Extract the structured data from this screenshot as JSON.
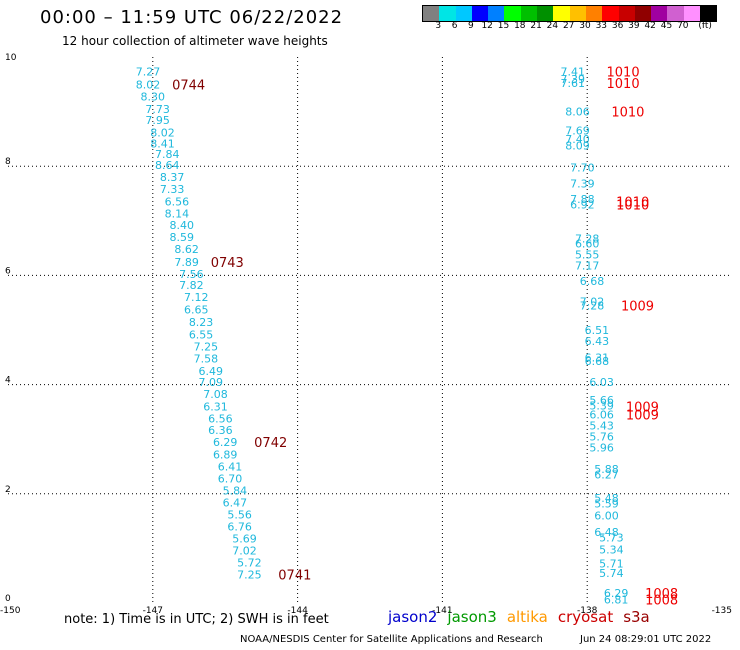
{
  "header": {
    "title": "00:00 – 11:59 UTC 06/22/2022",
    "subtitle": "12 hour collection of altimeter wave heights"
  },
  "colorbar": {
    "colors": [
      "#808080",
      "#00e5e5",
      "#00c8ff",
      "#0000ff",
      "#0080ff",
      "#00ff00",
      "#00c000",
      "#009000",
      "#ffff00",
      "#ffc000",
      "#ff8000",
      "#ff0000",
      "#c80000",
      "#900000",
      "#a000a0",
      "#d060d0",
      "#ff90ff",
      "#000000"
    ],
    "labels": [
      "3",
      "6",
      "9",
      "12",
      "15",
      "18",
      "21",
      "24",
      "27",
      "30",
      "33",
      "36",
      "39",
      "42",
      "45",
      "70",
      "(ft)"
    ]
  },
  "chart_data": {
    "type": "scatter",
    "xlim": [
      -150,
      -135
    ],
    "ylim": [
      0,
      10
    ],
    "x_ticks": [
      "-150",
      "-147",
      "-144",
      "-141",
      "-138",
      "-135"
    ],
    "y_ticks": [
      "0",
      "2",
      "4",
      "6",
      "8",
      "10"
    ],
    "grid": true,
    "track_west": [
      {
        "x": -147.1,
        "y": 9.73,
        "v": "7.27"
      },
      {
        "x": -147.1,
        "y": 9.5,
        "v": "8.02"
      },
      {
        "x": -147.0,
        "y": 9.28,
        "v": "8.30"
      },
      {
        "x": -146.9,
        "y": 9.05,
        "v": "7.73"
      },
      {
        "x": -146.9,
        "y": 8.85,
        "v": "7.95"
      },
      {
        "x": -146.8,
        "y": 8.62,
        "v": "8.02"
      },
      {
        "x": -146.8,
        "y": 8.42,
        "v": "8.41"
      },
      {
        "x": -146.7,
        "y": 8.22,
        "v": "7.84"
      },
      {
        "x": -146.7,
        "y": 8.02,
        "v": "8.64"
      },
      {
        "x": -146.6,
        "y": 7.8,
        "v": "8.37"
      },
      {
        "x": -146.6,
        "y": 7.58,
        "v": "7.33"
      },
      {
        "x": -146.5,
        "y": 7.35,
        "v": "6.56"
      },
      {
        "x": -146.5,
        "y": 7.13,
        "v": "8.14"
      },
      {
        "x": -146.4,
        "y": 6.92,
        "v": "8.40"
      },
      {
        "x": -146.4,
        "y": 6.7,
        "v": "8.59"
      },
      {
        "x": -146.3,
        "y": 6.48,
        "v": "8.62"
      },
      {
        "x": -146.3,
        "y": 6.25,
        "v": "7.89"
      },
      {
        "x": -146.2,
        "y": 6.03,
        "v": "7.56"
      },
      {
        "x": -146.2,
        "y": 5.82,
        "v": "7.82"
      },
      {
        "x": -146.1,
        "y": 5.6,
        "v": "7.12"
      },
      {
        "x": -146.1,
        "y": 5.38,
        "v": "6.65"
      },
      {
        "x": -146.0,
        "y": 5.15,
        "v": "8.23"
      },
      {
        "x": -146.0,
        "y": 4.92,
        "v": "6.55"
      },
      {
        "x": -145.9,
        "y": 4.7,
        "v": "7.25"
      },
      {
        "x": -145.9,
        "y": 4.48,
        "v": "7.58"
      },
      {
        "x": -145.8,
        "y": 4.25,
        "v": "6.49"
      },
      {
        "x": -145.8,
        "y": 4.05,
        "v": "7.09"
      },
      {
        "x": -145.7,
        "y": 3.83,
        "v": "7.08"
      },
      {
        "x": -145.7,
        "y": 3.6,
        "v": "6.31"
      },
      {
        "x": -145.6,
        "y": 3.38,
        "v": "6.56"
      },
      {
        "x": -145.6,
        "y": 3.17,
        "v": "6.36"
      },
      {
        "x": -145.5,
        "y": 2.95,
        "v": "6.29"
      },
      {
        "x": -145.5,
        "y": 2.72,
        "v": "6.89"
      },
      {
        "x": -145.4,
        "y": 2.5,
        "v": "6.41"
      },
      {
        "x": -145.4,
        "y": 2.28,
        "v": "6.70"
      },
      {
        "x": -145.3,
        "y": 2.06,
        "v": "5.84"
      },
      {
        "x": -145.3,
        "y": 1.84,
        "v": "6.47"
      },
      {
        "x": -145.2,
        "y": 1.62,
        "v": "5.56"
      },
      {
        "x": -145.2,
        "y": 1.4,
        "v": "6.76"
      },
      {
        "x": -145.1,
        "y": 1.18,
        "v": "5.69"
      },
      {
        "x": -145.1,
        "y": 0.96,
        "v": "7.02"
      },
      {
        "x": -145.0,
        "y": 0.74,
        "v": "5.72"
      },
      {
        "x": -145.0,
        "y": 0.52,
        "v": "7.25"
      }
    ],
    "track_west_labels": [
      {
        "x": -146.6,
        "y": 9.5,
        "v": "0744"
      },
      {
        "x": -145.8,
        "y": 6.25,
        "v": "0743"
      },
      {
        "x": -144.9,
        "y": 2.95,
        "v": "0742"
      },
      {
        "x": -144.4,
        "y": 0.52,
        "v": "0741"
      }
    ],
    "track_east": [
      {
        "x": -138.3,
        "y": 9.73,
        "v": "7.41"
      },
      {
        "x": -138.3,
        "y": 9.6,
        "v": "7.39"
      },
      {
        "x": -138.3,
        "y": 9.52,
        "v": "7.61"
      },
      {
        "x": -138.2,
        "y": 9.0,
        "v": "8.06"
      },
      {
        "x": -138.2,
        "y": 8.65,
        "v": "7.69"
      },
      {
        "x": -138.2,
        "y": 8.5,
        "v": "7.40"
      },
      {
        "x": -138.2,
        "y": 8.38,
        "v": "8.09"
      },
      {
        "x": -138.1,
        "y": 7.98,
        "v": "7.70"
      },
      {
        "x": -138.1,
        "y": 7.68,
        "v": "7.39"
      },
      {
        "x": -138.1,
        "y": 7.4,
        "v": "7.88"
      },
      {
        "x": -138.1,
        "y": 7.3,
        "v": "6.92"
      },
      {
        "x": -138.0,
        "y": 6.68,
        "v": "7.28"
      },
      {
        "x": -138.0,
        "y": 6.58,
        "v": "6.60"
      },
      {
        "x": -138.0,
        "y": 6.38,
        "v": "5.55"
      },
      {
        "x": -138.0,
        "y": 6.18,
        "v": "7.17"
      },
      {
        "x": -137.9,
        "y": 5.9,
        "v": "6.68"
      },
      {
        "x": -137.9,
        "y": 5.52,
        "v": "7.02"
      },
      {
        "x": -137.9,
        "y": 5.45,
        "v": "7.28"
      },
      {
        "x": -137.8,
        "y": 5.0,
        "v": "6.51"
      },
      {
        "x": -137.8,
        "y": 4.8,
        "v": "6.43"
      },
      {
        "x": -137.8,
        "y": 4.5,
        "v": "6.31"
      },
      {
        "x": -137.8,
        "y": 4.43,
        "v": "6.68"
      },
      {
        "x": -137.7,
        "y": 4.05,
        "v": "6.03"
      },
      {
        "x": -137.7,
        "y": 3.72,
        "v": "5.66"
      },
      {
        "x": -137.7,
        "y": 3.62,
        "v": "5.39"
      },
      {
        "x": -137.7,
        "y": 3.45,
        "v": "6.06"
      },
      {
        "x": -137.7,
        "y": 3.25,
        "v": "5.43"
      },
      {
        "x": -137.7,
        "y": 3.05,
        "v": "5.76"
      },
      {
        "x": -137.7,
        "y": 2.85,
        "v": "5.96"
      },
      {
        "x": -137.6,
        "y": 2.45,
        "v": "5.88"
      },
      {
        "x": -137.6,
        "y": 2.35,
        "v": "6.27"
      },
      {
        "x": -137.6,
        "y": 1.92,
        "v": "5.48"
      },
      {
        "x": -137.6,
        "y": 1.82,
        "v": "5.59"
      },
      {
        "x": -137.6,
        "y": 1.6,
        "v": "6.00"
      },
      {
        "x": -137.6,
        "y": 1.3,
        "v": "6.48"
      },
      {
        "x": -137.5,
        "y": 1.2,
        "v": "5.73"
      },
      {
        "x": -137.5,
        "y": 0.98,
        "v": "5.34"
      },
      {
        "x": -137.5,
        "y": 0.72,
        "v": "5.71"
      },
      {
        "x": -137.5,
        "y": 0.55,
        "v": "5.74"
      },
      {
        "x": -137.4,
        "y": 0.18,
        "v": "6.29"
      },
      {
        "x": -137.4,
        "y": 0.06,
        "v": "6.81"
      }
    ],
    "track_east_labels": [
      {
        "x": -137.6,
        "y": 9.73,
        "v": "1010"
      },
      {
        "x": -137.6,
        "y": 9.52,
        "v": "1010"
      },
      {
        "x": -137.5,
        "y": 9.0,
        "v": "1010"
      },
      {
        "x": -137.4,
        "y": 7.35,
        "v": "1010"
      },
      {
        "x": -137.4,
        "y": 7.3,
        "v": "1010"
      },
      {
        "x": -137.3,
        "y": 5.45,
        "v": "1009"
      },
      {
        "x": -137.2,
        "y": 3.6,
        "v": "1009"
      },
      {
        "x": -137.2,
        "y": 3.45,
        "v": "1009"
      },
      {
        "x": -136.8,
        "y": 0.18,
        "v": "1008"
      },
      {
        "x": -136.8,
        "y": 0.06,
        "v": "1008"
      }
    ]
  },
  "note": "note:  1) Time is in UTC;  2) SWH is in feet",
  "legend": [
    {
      "name": "jason2",
      "color": "#0000cc"
    },
    {
      "name": "jason3",
      "color": "#009900"
    },
    {
      "name": "altika",
      "color": "#ff9900"
    },
    {
      "name": "cryosat",
      "color": "#cc0000"
    },
    {
      "name": "s3a",
      "color": "#990000"
    }
  ],
  "footer": {
    "org": "NOAA/NESDIS Center for Satellite Applications and Research",
    "timestamp": "Jun 24 08:29:01 UTC 2022"
  }
}
